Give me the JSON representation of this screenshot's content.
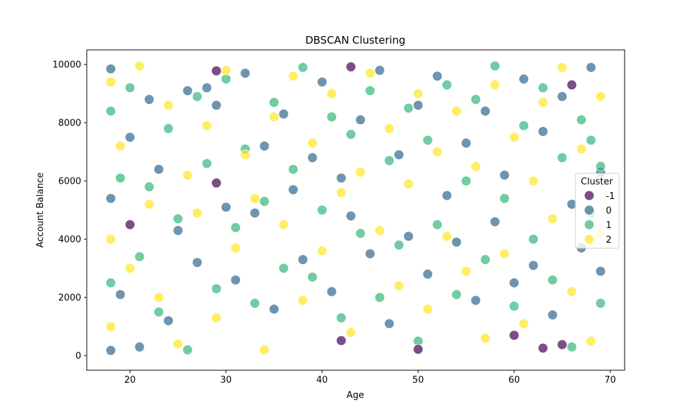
{
  "chart_data": {
    "type": "scatter",
    "title": "DBSCAN Clustering",
    "xlabel": "Age",
    "ylabel": "Account Balance",
    "xlim": [
      15.5,
      71.5
    ],
    "ylim": [
      -500,
      10500
    ],
    "xticks": [
      20,
      30,
      40,
      50,
      60,
      70
    ],
    "yticks": [
      0,
      2000,
      4000,
      6000,
      8000,
      10000
    ],
    "grid": false,
    "legend": {
      "title": "Cluster",
      "placement": "center-right",
      "entries": [
        "-1",
        "0",
        "1",
        "2"
      ]
    },
    "colors": {
      "-1": "#440154",
      "0": "#31688e",
      "1": "#35b779",
      "2": "#fde725"
    },
    "point_alpha": 0.7,
    "age_range": [
      18,
      69
    ],
    "balance_range": [
      100,
      10000
    ],
    "series": [
      {
        "name": "-1",
        "points": [
          [
            29,
            9780
          ],
          [
            29,
            5930
          ],
          [
            42,
            520
          ],
          [
            43,
            9920
          ],
          [
            50,
            220
          ],
          [
            60,
            700
          ],
          [
            63,
            260
          ],
          [
            65,
            380
          ],
          [
            66,
            9300
          ],
          [
            20,
            4500
          ]
        ]
      },
      {
        "name": "0",
        "points": [
          [
            18,
            9850
          ],
          [
            18,
            5400
          ],
          [
            18,
            180
          ],
          [
            19,
            2100
          ],
          [
            20,
            7500
          ],
          [
            21,
            300
          ],
          [
            22,
            8800
          ],
          [
            23,
            6400
          ],
          [
            24,
            1200
          ],
          [
            25,
            4300
          ],
          [
            26,
            9100
          ],
          [
            27,
            3200
          ],
          [
            28,
            9200
          ],
          [
            29,
            8600
          ],
          [
            30,
            5100
          ],
          [
            31,
            2600
          ],
          [
            32,
            9700
          ],
          [
            33,
            4900
          ],
          [
            34,
            7200
          ],
          [
            35,
            1600
          ],
          [
            36,
            8300
          ],
          [
            37,
            5700
          ],
          [
            38,
            3300
          ],
          [
            39,
            6800
          ],
          [
            40,
            9400
          ],
          [
            41,
            2200
          ],
          [
            42,
            6100
          ],
          [
            43,
            4800
          ],
          [
            44,
            8100
          ],
          [
            45,
            3500
          ],
          [
            46,
            9800
          ],
          [
            47,
            1100
          ],
          [
            48,
            6900
          ],
          [
            49,
            4100
          ],
          [
            50,
            8600
          ],
          [
            51,
            2800
          ],
          [
            52,
            9600
          ],
          [
            53,
            5500
          ],
          [
            54,
            3900
          ],
          [
            55,
            7300
          ],
          [
            56,
            1900
          ],
          [
            57,
            8400
          ],
          [
            58,
            4600
          ],
          [
            59,
            6200
          ],
          [
            60,
            2500
          ],
          [
            61,
            9500
          ],
          [
            62,
            3100
          ],
          [
            63,
            7700
          ],
          [
            64,
            1400
          ],
          [
            65,
            8900
          ],
          [
            66,
            5200
          ],
          [
            67,
            3700
          ],
          [
            68,
            9900
          ],
          [
            69,
            2900
          ],
          [
            69,
            6300
          ]
        ]
      },
      {
        "name": "1",
        "points": [
          [
            18,
            8400
          ],
          [
            18,
            2500
          ],
          [
            19,
            6100
          ],
          [
            20,
            9200
          ],
          [
            21,
            3400
          ],
          [
            22,
            5800
          ],
          [
            23,
            1500
          ],
          [
            24,
            7800
          ],
          [
            25,
            4700
          ],
          [
            26,
            200
          ],
          [
            27,
            8900
          ],
          [
            28,
            6600
          ],
          [
            29,
            2300
          ],
          [
            30,
            9500
          ],
          [
            31,
            4400
          ],
          [
            32,
            7100
          ],
          [
            33,
            1800
          ],
          [
            34,
            5300
          ],
          [
            35,
            8700
          ],
          [
            36,
            3000
          ],
          [
            37,
            6400
          ],
          [
            38,
            9900
          ],
          [
            39,
            2700
          ],
          [
            40,
            5000
          ],
          [
            41,
            8200
          ],
          [
            42,
            1300
          ],
          [
            43,
            7600
          ],
          [
            44,
            4200
          ],
          [
            45,
            9100
          ],
          [
            46,
            2000
          ],
          [
            47,
            6700
          ],
          [
            48,
            3800
          ],
          [
            49,
            8500
          ],
          [
            50,
            500
          ],
          [
            51,
            7400
          ],
          [
            52,
            4500
          ],
          [
            53,
            9300
          ],
          [
            54,
            2100
          ],
          [
            55,
            6000
          ],
          [
            56,
            8800
          ],
          [
            57,
            3300
          ],
          [
            58,
            9950
          ],
          [
            59,
            5400
          ],
          [
            60,
            1700
          ],
          [
            61,
            7900
          ],
          [
            62,
            4000
          ],
          [
            63,
            9200
          ],
          [
            64,
            2600
          ],
          [
            65,
            6800
          ],
          [
            66,
            300
          ],
          [
            67,
            8100
          ],
          [
            68,
            4900
          ],
          [
            69,
            6500
          ],
          [
            69,
            1800
          ],
          [
            68,
            7400
          ]
        ]
      },
      {
        "name": "2",
        "points": [
          [
            18,
            9400
          ],
          [
            18,
            4000
          ],
          [
            18,
            1000
          ],
          [
            19,
            7200
          ],
          [
            20,
            3000
          ],
          [
            21,
            9950
          ],
          [
            22,
            5200
          ],
          [
            23,
            2000
          ],
          [
            24,
            8600
          ],
          [
            25,
            400
          ],
          [
            26,
            6200
          ],
          [
            27,
            4900
          ],
          [
            28,
            7900
          ],
          [
            29,
            1300
          ],
          [
            30,
            9800
          ],
          [
            31,
            3700
          ],
          [
            32,
            6900
          ],
          [
            33,
            5400
          ],
          [
            34,
            200
          ],
          [
            35,
            8200
          ],
          [
            36,
            4500
          ],
          [
            37,
            9600
          ],
          [
            38,
            1900
          ],
          [
            39,
            7300
          ],
          [
            40,
            3600
          ],
          [
            41,
            9000
          ],
          [
            42,
            5600
          ],
          [
            43,
            800
          ],
          [
            44,
            6300
          ],
          [
            45,
            9700
          ],
          [
            46,
            4300
          ],
          [
            47,
            7800
          ],
          [
            48,
            2400
          ],
          [
            49,
            5900
          ],
          [
            50,
            9000
          ],
          [
            51,
            1600
          ],
          [
            52,
            7000
          ],
          [
            53,
            4100
          ],
          [
            54,
            8400
          ],
          [
            55,
            2900
          ],
          [
            56,
            6500
          ],
          [
            57,
            600
          ],
          [
            58,
            9300
          ],
          [
            59,
            3500
          ],
          [
            60,
            7500
          ],
          [
            61,
            1100
          ],
          [
            62,
            6000
          ],
          [
            63,
            8700
          ],
          [
            64,
            4700
          ],
          [
            65,
            9900
          ],
          [
            66,
            2200
          ],
          [
            67,
            7100
          ],
          [
            68,
            500
          ],
          [
            69,
            8900
          ],
          [
            69,
            4200
          ]
        ]
      }
    ]
  }
}
